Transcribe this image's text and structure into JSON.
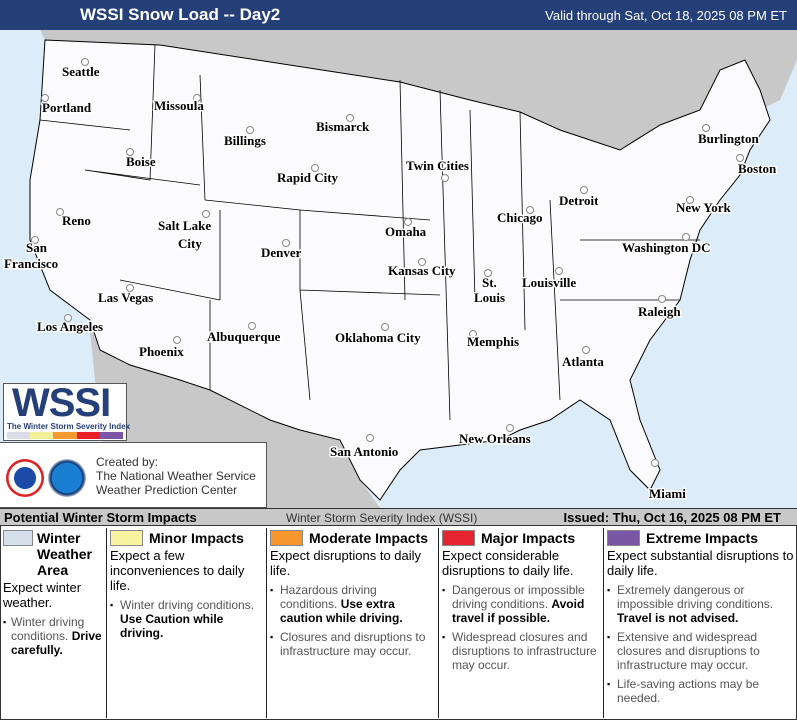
{
  "header": {
    "title": "WSSI Snow Load -- Day2",
    "valid": "Valid through Sat, Oct 18, 2025 08 PM ET"
  },
  "map": {
    "colors": {
      "ocean": "#dcecf8",
      "foreign_land": "#c8c8c8",
      "us_land": "#fbfbfd"
    },
    "cities": [
      {
        "name": "Seattle"
      },
      {
        "name": "Portland"
      },
      {
        "name": "Missoula"
      },
      {
        "name": "Bismarck"
      },
      {
        "name": "Billings"
      },
      {
        "name": "Burlington"
      },
      {
        "name": "Boise"
      },
      {
        "name": "Rapid City"
      },
      {
        "name": "Twin Cities"
      },
      {
        "name": "Boston"
      },
      {
        "name": "Detroit"
      },
      {
        "name": "New York"
      },
      {
        "name": "Reno"
      },
      {
        "name": "Salt Lake City"
      },
      {
        "name": "Chicago"
      },
      {
        "name": "Denver"
      },
      {
        "name": "Omaha"
      },
      {
        "name": "Washington DC"
      },
      {
        "name": "San Francisco"
      },
      {
        "name": "Kansas City"
      },
      {
        "name": "St. Louis"
      },
      {
        "name": "Louisville"
      },
      {
        "name": "Las Vegas"
      },
      {
        "name": "Raleigh"
      },
      {
        "name": "Los Angeles"
      },
      {
        "name": "Albuquerque"
      },
      {
        "name": "Oklahoma City"
      },
      {
        "name": "Memphis"
      },
      {
        "name": "Phoenix"
      },
      {
        "name": "Atlanta"
      },
      {
        "name": "San Antonio"
      },
      {
        "name": "New Orleans"
      },
      {
        "name": "Miami"
      }
    ]
  },
  "logo": {
    "word": "WSSI",
    "subtitle": "The Winter Storm Severity Index",
    "colors": [
      "#dcdce8",
      "#f4f09a",
      "#f79a32",
      "#e8202a",
      "#7c55a6"
    ]
  },
  "credit": {
    "line1": "Created by:",
    "line2": "The National Weather Service",
    "line3": "Weather Prediction Center",
    "logos": [
      "NWS logo",
      "NOAA logo"
    ]
  },
  "legend": {
    "heading": "Potential Winter Storm Impacts",
    "index_name": "Winter Storm Severity Index (WSSI)",
    "issued": "Issued: Thu, Oct 16, 2025 08 PM ET",
    "categories": [
      {
        "title": "Winter Weather Area",
        "color": "#d5e0ea",
        "expect": "Expect winter weather.",
        "bullets": [
          {
            "text": "Winter driving conditions.",
            "bold": "Drive carefully."
          }
        ]
      },
      {
        "title": "Minor Impacts",
        "color": "#f8f4a0",
        "expect": "Expect a few inconveniences to daily life.",
        "bullets": [
          {
            "text": "Winter driving conditions.",
            "bold": "Use Caution while driving."
          }
        ]
      },
      {
        "title": "Moderate Impacts",
        "color": "#f7962f",
        "expect": "Expect disruptions to daily life.",
        "bullets": [
          {
            "text": "Hazardous driving conditions.",
            "bold": "Use extra caution while driving."
          },
          {
            "text": "Closures and disruptions to infrastructure may occur.",
            "bold": ""
          }
        ]
      },
      {
        "title": "Major Impacts",
        "color": "#e52430",
        "expect": "Expect considerable disruptions to daily life.",
        "bullets": [
          {
            "text": "Dangerous or impossible driving conditions.",
            "bold": "Avoid travel if possible."
          },
          {
            "text": "Widespread closures and disruptions to infrastructure may occur.",
            "bold": ""
          }
        ]
      },
      {
        "title": "Extreme Impacts",
        "color": "#7b56a5",
        "expect": "Expect substantial disruptions to daily life.",
        "bullets": [
          {
            "text": "Extremely dangerous or impossible driving conditions.",
            "bold": "Travel is not advised."
          },
          {
            "text": "Extensive and widespread closures and disruptions to infrastructure may occur.",
            "bold": ""
          },
          {
            "text": "Life-saving actions may be needed.",
            "bold": ""
          }
        ]
      }
    ]
  }
}
